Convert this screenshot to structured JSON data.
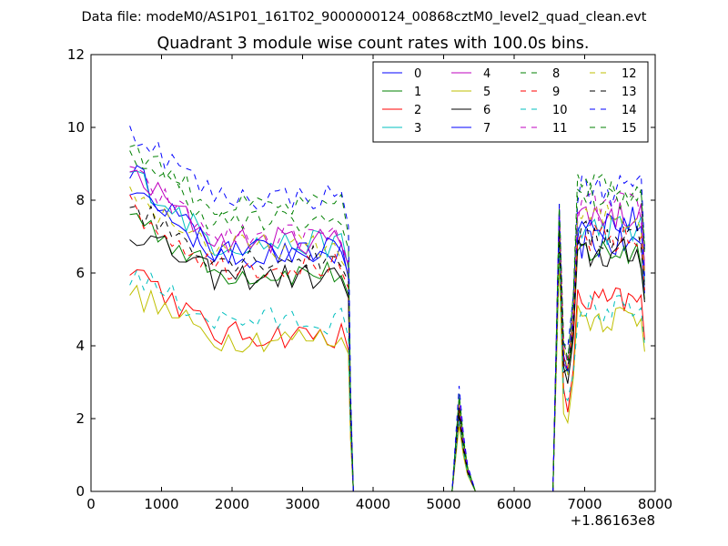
{
  "figure": {
    "suptitle": "Data file: modeM0/AS1P01_161T02_9000000124_00868cztM0_level2_quad_clean.evt"
  },
  "chart_data": {
    "type": "line",
    "title": "Quadrant 3 module wise count rates with 100.0s bins.",
    "xlabel": "",
    "ylabel": "",
    "xlim": [
      0,
      8000
    ],
    "ylim": [
      0,
      12
    ],
    "x_offset_label": "+1.86163e8",
    "xticks": [
      0,
      1000,
      2000,
      3000,
      4000,
      5000,
      6000,
      7000,
      8000
    ],
    "yticks": [
      0,
      2,
      4,
      6,
      8,
      10,
      12
    ],
    "xtick_labels": [
      "0",
      "1000",
      "2000",
      "3000",
      "4000",
      "5000",
      "6000",
      "7000",
      "8000"
    ],
    "ytick_labels": [
      "0",
      "2",
      "4",
      "6",
      "8",
      "10",
      "12"
    ],
    "grid": false,
    "legend_position": "top-right",
    "legend_columns": 4,
    "segments": [
      {
        "start": 550,
        "end": 3650,
        "points": 32,
        "drop_end": 3720
      },
      {
        "start": 5120,
        "end": 5450,
        "peak_x": 5220
      },
      {
        "start": 6550,
        "end": 7850,
        "rise_x": 6640
      }
    ],
    "series": [
      {
        "name": "0",
        "color": "#0000ff",
        "dash": "solid",
        "level1": 8.9,
        "level2": 6.5,
        "spike": 2.3,
        "rise_peak": 7.6,
        "level3": 6.8
      },
      {
        "name": "1",
        "color": "#008000",
        "dash": "solid",
        "level1": 7.7,
        "level2": 6.0,
        "spike": 2.2,
        "rise_peak": 7.2,
        "level3": 6.6
      },
      {
        "name": "2",
        "color": "#ff0000",
        "dash": "solid",
        "level1": 6.3,
        "level2": 4.3,
        "spike": 1.9,
        "rise_peak": 6.6,
        "level3": 5.2
      },
      {
        "name": "3",
        "color": "#00bfbf",
        "dash": "solid",
        "level1": 8.8,
        "level2": 6.8,
        "spike": 2.5,
        "rise_peak": 7.4,
        "level3": 7.2
      },
      {
        "name": "4",
        "color": "#bf00bf",
        "dash": "solid",
        "level1": 8.8,
        "level2": 6.9,
        "spike": 2.5,
        "rise_peak": 7.8,
        "level3": 7.6
      },
      {
        "name": "5",
        "color": "#bfbf00",
        "dash": "solid",
        "level1": 5.5,
        "level2": 4.2,
        "spike": 1.8,
        "rise_peak": 6.3,
        "level3": 4.8
      },
      {
        "name": "6",
        "color": "#000000",
        "dash": "solid",
        "level1": 7.2,
        "level2": 5.9,
        "spike": 2.1,
        "rise_peak": 7.0,
        "level3": 6.5
      },
      {
        "name": "7",
        "color": "#0000ff",
        "dash": "solid",
        "level1": 8.4,
        "level2": 6.6,
        "spike": 2.4,
        "rise_peak": 7.5,
        "level3": 7.4
      },
      {
        "name": "8",
        "color": "#008000",
        "dash": "dashed",
        "level1": 9.6,
        "level2": 7.8,
        "spike": 2.7,
        "rise_peak": 7.9,
        "level3": 8.4
      },
      {
        "name": "9",
        "color": "#ff0000",
        "dash": "dashed",
        "level1": 7.8,
        "level2": 6.2,
        "spike": 2.3,
        "rise_peak": 7.3,
        "level3": 6.9
      },
      {
        "name": "10",
        "color": "#00bfbf",
        "dash": "dashed",
        "level1": 6.0,
        "level2": 4.7,
        "spike": 2.0,
        "rise_peak": 6.7,
        "level3": 5.0
      },
      {
        "name": "11",
        "color": "#bf00bf",
        "dash": "dashed",
        "level1": 8.7,
        "level2": 7.0,
        "spike": 2.5,
        "rise_peak": 7.7,
        "level3": 7.8
      },
      {
        "name": "12",
        "color": "#bfbf00",
        "dash": "dashed",
        "level1": 8.2,
        "level2": 6.7,
        "spike": 2.4,
        "rise_peak": 7.4,
        "level3": 7.5
      },
      {
        "name": "13",
        "color": "#000000",
        "dash": "dashed",
        "level1": 7.9,
        "level2": 6.4,
        "spike": 2.3,
        "rise_peak": 7.2,
        "level3": 7.0
      },
      {
        "name": "14",
        "color": "#0000ff",
        "dash": "dashed",
        "level1": 10.0,
        "level2": 8.1,
        "spike": 2.9,
        "rise_peak": 7.9,
        "level3": 8.3
      },
      {
        "name": "15",
        "color": "#008000",
        "dash": "dashed",
        "level1": 9.4,
        "level2": 7.4,
        "spike": 2.6,
        "rise_peak": 7.8,
        "level3": 8.1
      }
    ]
  }
}
